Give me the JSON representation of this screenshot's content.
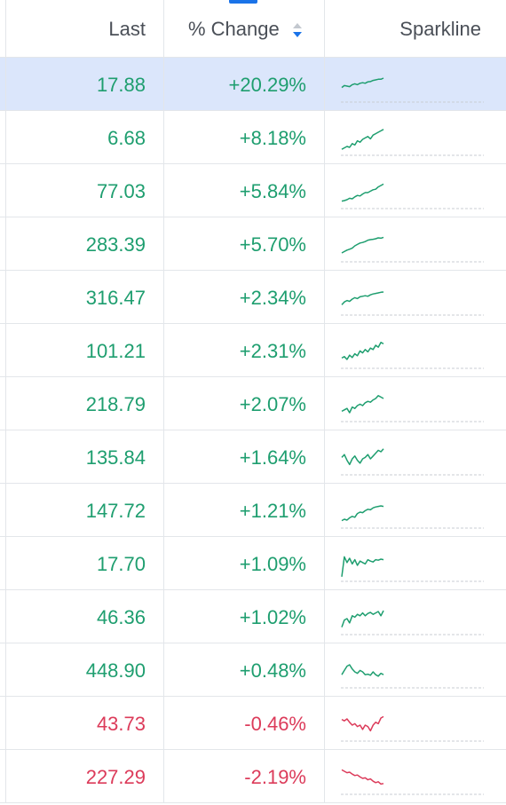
{
  "header": {
    "last_label": "Last",
    "change_label": "% Change",
    "sparkline_label": "Sparkline"
  },
  "colors": {
    "positive": "#1e9e6f",
    "negative": "#dc3b5a",
    "selected_row": "#dbe6fb",
    "accent": "#1a73e8",
    "grid": "#e3e6ea"
  },
  "rows": [
    {
      "last": "17.88",
      "change": "+20.29%",
      "direction": "up",
      "selected": true,
      "spark": [
        0.45,
        0.52,
        0.5,
        0.48,
        0.55,
        0.58,
        0.55,
        0.6,
        0.62,
        0.6,
        0.65,
        0.66,
        0.7,
        0.72,
        0.74,
        0.74,
        0.78
      ]
    },
    {
      "last": "6.68",
      "change": "+8.18%",
      "direction": "up",
      "selected": false,
      "spark": [
        0.15,
        0.2,
        0.25,
        0.22,
        0.35,
        0.3,
        0.45,
        0.4,
        0.5,
        0.55,
        0.6,
        0.52,
        0.65,
        0.7,
        0.75,
        0.8,
        0.85
      ]
    },
    {
      "last": "77.03",
      "change": "+5.84%",
      "direction": "up",
      "selected": false,
      "spark": [
        0.2,
        0.22,
        0.25,
        0.3,
        0.28,
        0.35,
        0.4,
        0.38,
        0.45,
        0.5,
        0.5,
        0.55,
        0.6,
        0.62,
        0.7,
        0.75,
        0.8
      ]
    },
    {
      "last": "283.39",
      "change": "+5.70%",
      "direction": "up",
      "selected": false,
      "spark": [
        0.25,
        0.3,
        0.35,
        0.38,
        0.42,
        0.5,
        0.55,
        0.6,
        0.62,
        0.65,
        0.7,
        0.72,
        0.73,
        0.75,
        0.78,
        0.77,
        0.8
      ]
    },
    {
      "last": "316.47",
      "change": "+2.34%",
      "direction": "up",
      "selected": false,
      "spark": [
        0.3,
        0.4,
        0.45,
        0.42,
        0.5,
        0.55,
        0.52,
        0.58,
        0.6,
        0.62,
        0.6,
        0.65,
        0.68,
        0.7,
        0.72,
        0.74,
        0.75
      ]
    },
    {
      "last": "101.21",
      "change": "+2.31%",
      "direction": "up",
      "selected": false,
      "spark": [
        0.3,
        0.35,
        0.25,
        0.4,
        0.32,
        0.45,
        0.38,
        0.55,
        0.48,
        0.6,
        0.52,
        0.65,
        0.6,
        0.75,
        0.68,
        0.85,
        0.8
      ]
    },
    {
      "last": "218.79",
      "change": "+2.07%",
      "direction": "up",
      "selected": false,
      "spark": [
        0.3,
        0.35,
        0.4,
        0.25,
        0.45,
        0.4,
        0.5,
        0.55,
        0.5,
        0.6,
        0.65,
        0.62,
        0.7,
        0.75,
        0.85,
        0.8,
        0.75
      ]
    },
    {
      "last": "135.84",
      "change": "+1.64%",
      "direction": "up",
      "selected": false,
      "spark": [
        0.55,
        0.65,
        0.45,
        0.3,
        0.5,
        0.6,
        0.45,
        0.35,
        0.5,
        0.55,
        0.65,
        0.5,
        0.6,
        0.7,
        0.8,
        0.75,
        0.85
      ]
    },
    {
      "last": "147.72",
      "change": "+1.21%",
      "direction": "up",
      "selected": false,
      "spark": [
        0.2,
        0.25,
        0.22,
        0.3,
        0.35,
        0.32,
        0.45,
        0.5,
        0.48,
        0.55,
        0.6,
        0.58,
        0.65,
        0.68,
        0.7,
        0.72,
        0.7
      ]
    },
    {
      "last": "17.70",
      "change": "+1.09%",
      "direction": "up",
      "selected": false,
      "spark": [
        0.1,
        0.8,
        0.6,
        0.75,
        0.55,
        0.7,
        0.5,
        0.65,
        0.6,
        0.55,
        0.7,
        0.65,
        0.62,
        0.7,
        0.68,
        0.72,
        0.7
      ]
    },
    {
      "last": "46.36",
      "change": "+1.02%",
      "direction": "up",
      "selected": false,
      "spark": [
        0.2,
        0.45,
        0.5,
        0.35,
        0.6,
        0.55,
        0.65,
        0.6,
        0.7,
        0.6,
        0.68,
        0.72,
        0.65,
        0.7,
        0.75,
        0.6,
        0.78
      ]
    },
    {
      "last": "448.90",
      "change": "+0.48%",
      "direction": "up",
      "selected": false,
      "spark": [
        0.4,
        0.55,
        0.7,
        0.75,
        0.6,
        0.5,
        0.45,
        0.55,
        0.5,
        0.4,
        0.42,
        0.38,
        0.5,
        0.4,
        0.35,
        0.45,
        0.4
      ]
    },
    {
      "last": "43.73",
      "change": "-0.46%",
      "direction": "down",
      "selected": false,
      "spark": [
        0.7,
        0.65,
        0.72,
        0.6,
        0.5,
        0.55,
        0.45,
        0.5,
        0.35,
        0.5,
        0.45,
        0.3,
        0.5,
        0.6,
        0.55,
        0.75,
        0.8
      ]
    },
    {
      "last": "227.29",
      "change": "-2.19%",
      "direction": "down",
      "selected": false,
      "spark": [
        0.8,
        0.75,
        0.7,
        0.72,
        0.65,
        0.6,
        0.62,
        0.55,
        0.5,
        0.52,
        0.45,
        0.48,
        0.4,
        0.35,
        0.38,
        0.3,
        0.32
      ]
    }
  ]
}
